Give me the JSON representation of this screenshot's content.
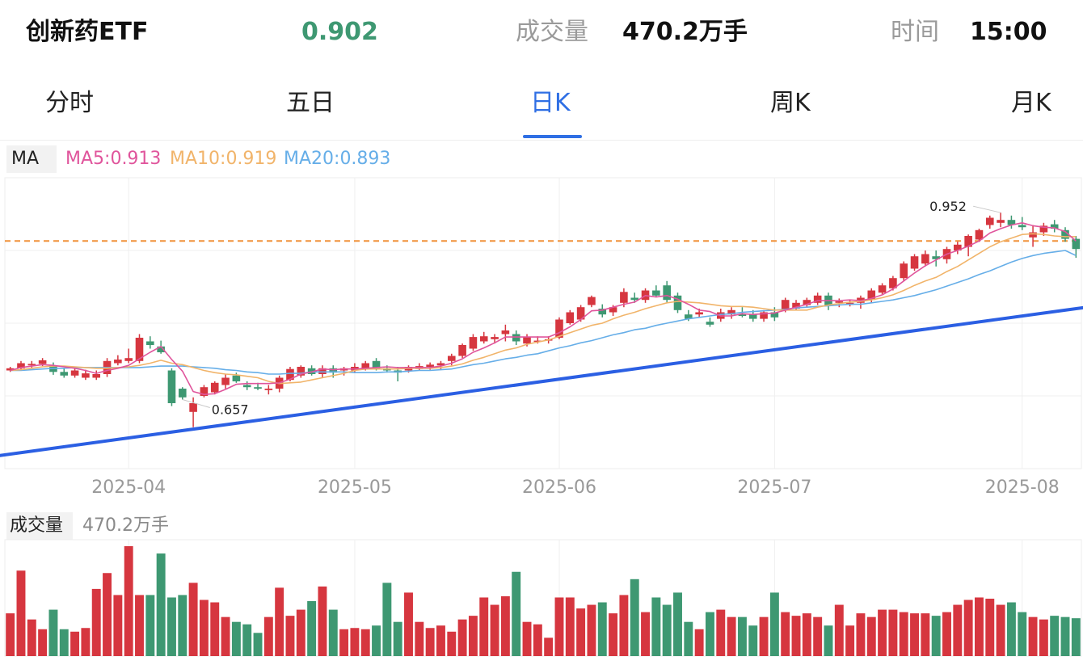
{
  "header": {
    "name": "创新药ETF",
    "price": "0.902",
    "volume_label": "成交量",
    "volume_value": "470.2万手",
    "time_label": "时间",
    "time_value": "15:00"
  },
  "tabs": [
    {
      "label": "分时",
      "active": false
    },
    {
      "label": "五日",
      "active": false
    },
    {
      "label": "日K",
      "active": true
    },
    {
      "label": "周K",
      "active": false
    },
    {
      "label": "月K",
      "active": false
    }
  ],
  "ma_legend": {
    "box": "MA",
    "ma5": "MA5:0.913",
    "ma10": "MA10:0.919",
    "ma20": "MA20:0.893"
  },
  "volume_legend": {
    "box": "成交量",
    "value": "470.2万手"
  },
  "colors": {
    "up": "#d6363f",
    "down": "#3e9872",
    "ma5": "#e0559c",
    "ma10": "#f1b46a",
    "ma20": "#66aee8",
    "trendline": "#2b5fe3",
    "ref_line": "#f0923a",
    "accent": "#2f6fe4"
  },
  "chart_data": {
    "type": "candlestick",
    "x_tick_labels": [
      "2025-04",
      "2025-05",
      "2025-06",
      "2025-07",
      "2025-08"
    ],
    "x_tick_index": [
      11,
      32,
      51,
      71,
      94
    ],
    "ylim": [
      0.6,
      1.0
    ],
    "reference_price": 0.913,
    "high_marker": {
      "label": "0.952",
      "index": 92
    },
    "low_marker": {
      "label": "0.657",
      "index": 16
    },
    "trendline": {
      "start": [
        0,
        0.62
      ],
      "end": [
        99,
        0.82
      ]
    },
    "ohlc": [
      [
        0.735,
        0.74,
        0.733,
        0.738
      ],
      [
        0.738,
        0.748,
        0.735,
        0.745
      ],
      [
        0.742,
        0.748,
        0.738,
        0.744
      ],
      [
        0.744,
        0.752,
        0.741,
        0.749
      ],
      [
        0.742,
        0.746,
        0.729,
        0.733
      ],
      [
        0.733,
        0.738,
        0.725,
        0.728
      ],
      [
        0.728,
        0.738,
        0.725,
        0.735
      ],
      [
        0.725,
        0.736,
        0.722,
        0.731
      ],
      [
        0.725,
        0.735,
        0.722,
        0.73
      ],
      [
        0.73,
        0.752,
        0.726,
        0.748
      ],
      [
        0.745,
        0.756,
        0.742,
        0.75
      ],
      [
        0.748,
        0.765,
        0.745,
        0.752
      ],
      [
        0.748,
        0.785,
        0.745,
        0.78
      ],
      [
        0.775,
        0.782,
        0.765,
        0.77
      ],
      [
        0.768,
        0.776,
        0.758,
        0.76
      ],
      [
        0.735,
        0.738,
        0.686,
        0.69
      ],
      [
        0.71,
        0.712,
        0.695,
        0.698
      ],
      [
        0.678,
        0.698,
        0.657,
        0.69
      ],
      [
        0.7,
        0.715,
        0.698,
        0.712
      ],
      [
        0.705,
        0.72,
        0.702,
        0.718
      ],
      [
        0.715,
        0.73,
        0.71,
        0.725
      ],
      [
        0.728,
        0.732,
        0.718,
        0.72
      ],
      [
        0.715,
        0.72,
        0.708,
        0.712
      ],
      [
        0.712,
        0.718,
        0.708,
        0.71
      ],
      [
        0.708,
        0.715,
        0.702,
        0.71
      ],
      [
        0.71,
        0.728,
        0.705,
        0.725
      ],
      [
        0.722,
        0.74,
        0.72,
        0.737
      ],
      [
        0.728,
        0.742,
        0.725,
        0.74
      ],
      [
        0.738,
        0.742,
        0.728,
        0.73
      ],
      [
        0.73,
        0.742,
        0.725,
        0.738
      ],
      [
        0.738,
        0.742,
        0.725,
        0.732
      ],
      [
        0.735,
        0.74,
        0.728,
        0.738
      ],
      [
        0.735,
        0.745,
        0.732,
        0.74
      ],
      [
        0.738,
        0.748,
        0.735,
        0.745
      ],
      [
        0.748,
        0.752,
        0.735,
        0.738
      ],
      [
        0.738,
        0.742,
        0.732,
        0.735
      ],
      [
        0.735,
        0.74,
        0.72,
        0.732
      ],
      [
        0.735,
        0.742,
        0.732,
        0.74
      ],
      [
        0.737,
        0.745,
        0.735,
        0.741
      ],
      [
        0.74,
        0.746,
        0.736,
        0.743
      ],
      [
        0.742,
        0.748,
        0.736,
        0.745
      ],
      [
        0.748,
        0.758,
        0.742,
        0.755
      ],
      [
        0.755,
        0.772,
        0.752,
        0.77
      ],
      [
        0.765,
        0.785,
        0.762,
        0.781
      ],
      [
        0.775,
        0.788,
        0.772,
        0.782
      ],
      [
        0.778,
        0.785,
        0.772,
        0.781
      ],
      [
        0.785,
        0.798,
        0.775,
        0.79
      ],
      [
        0.785,
        0.79,
        0.77,
        0.775
      ],
      [
        0.772,
        0.785,
        0.768,
        0.781
      ],
      [
        0.775,
        0.782,
        0.772,
        0.776
      ],
      [
        0.776,
        0.782,
        0.772,
        0.778
      ],
      [
        0.78,
        0.808,
        0.778,
        0.805
      ],
      [
        0.8,
        0.818,
        0.798,
        0.815
      ],
      [
        0.805,
        0.825,
        0.802,
        0.822
      ],
      [
        0.825,
        0.838,
        0.822,
        0.836
      ],
      [
        0.82,
        0.826,
        0.808,
        0.812
      ],
      [
        0.815,
        0.825,
        0.81,
        0.822
      ],
      [
        0.828,
        0.848,
        0.822,
        0.843
      ],
      [
        0.835,
        0.842,
        0.828,
        0.832
      ],
      [
        0.832,
        0.848,
        0.828,
        0.845
      ],
      [
        0.845,
        0.852,
        0.836,
        0.838
      ],
      [
        0.852,
        0.858,
        0.828,
        0.832
      ],
      [
        0.838,
        0.842,
        0.814,
        0.818
      ],
      [
        0.812,
        0.818,
        0.803,
        0.806
      ],
      [
        0.812,
        0.82,
        0.808,
        0.815
      ],
      [
        0.802,
        0.808,
        0.795,
        0.798
      ],
      [
        0.806,
        0.82,
        0.802,
        0.815
      ],
      [
        0.812,
        0.822,
        0.806,
        0.818
      ],
      [
        0.812,
        0.822,
        0.808,
        0.81
      ],
      [
        0.812,
        0.818,
        0.802,
        0.806
      ],
      [
        0.806,
        0.818,
        0.802,
        0.815
      ],
      [
        0.815,
        0.822,
        0.803,
        0.808
      ],
      [
        0.818,
        0.835,
        0.815,
        0.832
      ],
      [
        0.82,
        0.832,
        0.818,
        0.828
      ],
      [
        0.825,
        0.835,
        0.822,
        0.832
      ],
      [
        0.828,
        0.842,
        0.825,
        0.838
      ],
      [
        0.838,
        0.842,
        0.818,
        0.825
      ],
      [
        0.828,
        0.834,
        0.822,
        0.83
      ],
      [
        0.825,
        0.832,
        0.823,
        0.828
      ],
      [
        0.828,
        0.838,
        0.82,
        0.835
      ],
      [
        0.832,
        0.848,
        0.828,
        0.845
      ],
      [
        0.842,
        0.855,
        0.84,
        0.852
      ],
      [
        0.848,
        0.865,
        0.845,
        0.862
      ],
      [
        0.862,
        0.885,
        0.858,
        0.882
      ],
      [
        0.875,
        0.895,
        0.872,
        0.892
      ],
      [
        0.882,
        0.9,
        0.878,
        0.895
      ],
      [
        0.892,
        0.9,
        0.878,
        0.888
      ],
      [
        0.888,
        0.905,
        0.882,
        0.902
      ],
      [
        0.9,
        0.912,
        0.895,
        0.908
      ],
      [
        0.905,
        0.922,
        0.892,
        0.92
      ],
      [
        0.915,
        0.93,
        0.912,
        0.928
      ],
      [
        0.935,
        0.948,
        0.93,
        0.945
      ],
      [
        0.938,
        0.952,
        0.932,
        0.942
      ],
      [
        0.942,
        0.948,
        0.93,
        0.935
      ],
      [
        0.935,
        0.946,
        0.928,
        0.932
      ],
      [
        0.918,
        0.935,
        0.905,
        0.925
      ],
      [
        0.925,
        0.938,
        0.92,
        0.934
      ],
      [
        0.936,
        0.942,
        0.925,
        0.93
      ],
      [
        0.928,
        0.932,
        0.912,
        0.916
      ],
      [
        0.916,
        0.92,
        0.89,
        0.902
      ]
    ],
    "ma5": [
      0.735,
      0.739,
      0.741,
      0.743,
      0.742,
      0.74,
      0.738,
      0.735,
      0.731,
      0.735,
      0.738,
      0.742,
      0.751,
      0.76,
      0.768,
      0.75,
      0.734,
      0.706,
      0.702,
      0.703,
      0.709,
      0.716,
      0.717,
      0.717,
      0.717,
      0.718,
      0.723,
      0.73,
      0.733,
      0.737,
      0.736,
      0.737,
      0.737,
      0.738,
      0.739,
      0.74,
      0.739,
      0.739,
      0.739,
      0.739,
      0.741,
      0.745,
      0.751,
      0.76,
      0.766,
      0.773,
      0.781,
      0.781,
      0.781,
      0.781,
      0.781,
      0.787,
      0.795,
      0.805,
      0.817,
      0.818,
      0.822,
      0.826,
      0.829,
      0.838,
      0.836,
      0.838,
      0.833,
      0.826,
      0.818,
      0.816,
      0.81,
      0.81,
      0.813,
      0.812,
      0.813,
      0.814,
      0.818,
      0.822,
      0.826,
      0.831,
      0.831,
      0.831,
      0.832,
      0.831,
      0.834,
      0.839,
      0.847,
      0.858,
      0.869,
      0.879,
      0.887,
      0.895,
      0.9,
      0.906,
      0.913,
      0.924,
      0.93,
      0.935,
      0.938,
      0.934,
      0.932,
      0.931,
      0.926,
      0.913
    ],
    "ma10": [
      0.735,
      0.736,
      0.738,
      0.74,
      0.741,
      0.741,
      0.74,
      0.739,
      0.738,
      0.738,
      0.739,
      0.74,
      0.742,
      0.745,
      0.749,
      0.745,
      0.743,
      0.739,
      0.735,
      0.732,
      0.73,
      0.729,
      0.727,
      0.725,
      0.72,
      0.717,
      0.718,
      0.719,
      0.722,
      0.725,
      0.728,
      0.731,
      0.735,
      0.737,
      0.737,
      0.737,
      0.737,
      0.738,
      0.738,
      0.738,
      0.739,
      0.741,
      0.744,
      0.749,
      0.753,
      0.758,
      0.763,
      0.766,
      0.771,
      0.774,
      0.777,
      0.782,
      0.787,
      0.792,
      0.797,
      0.8,
      0.806,
      0.811,
      0.815,
      0.82,
      0.824,
      0.828,
      0.83,
      0.829,
      0.828,
      0.826,
      0.824,
      0.823,
      0.823,
      0.822,
      0.82,
      0.818,
      0.818,
      0.818,
      0.818,
      0.822,
      0.825,
      0.827,
      0.829,
      0.83,
      0.832,
      0.835,
      0.839,
      0.845,
      0.852,
      0.858,
      0.863,
      0.871,
      0.878,
      0.887,
      0.896,
      0.905,
      0.912,
      0.917,
      0.922,
      0.923,
      0.922,
      0.92,
      0.919,
      0.919
    ],
    "ma20": [
      0.735,
      0.735,
      0.736,
      0.737,
      0.738,
      0.738,
      0.739,
      0.739,
      0.739,
      0.739,
      0.739,
      0.739,
      0.739,
      0.74,
      0.741,
      0.741,
      0.741,
      0.74,
      0.739,
      0.738,
      0.736,
      0.735,
      0.733,
      0.732,
      0.73,
      0.73,
      0.731,
      0.731,
      0.733,
      0.733,
      0.733,
      0.733,
      0.732,
      0.732,
      0.732,
      0.733,
      0.733,
      0.734,
      0.735,
      0.735,
      0.736,
      0.737,
      0.74,
      0.743,
      0.745,
      0.748,
      0.751,
      0.753,
      0.756,
      0.758,
      0.762,
      0.766,
      0.769,
      0.773,
      0.776,
      0.78,
      0.784,
      0.787,
      0.791,
      0.793,
      0.797,
      0.8,
      0.803,
      0.806,
      0.808,
      0.81,
      0.812,
      0.813,
      0.815,
      0.816,
      0.817,
      0.818,
      0.819,
      0.821,
      0.822,
      0.823,
      0.824,
      0.825,
      0.826,
      0.826,
      0.828,
      0.83,
      0.832,
      0.835,
      0.838,
      0.842,
      0.846,
      0.851,
      0.856,
      0.861,
      0.867,
      0.872,
      0.878,
      0.884,
      0.889,
      0.893,
      0.896,
      0.898,
      0.9,
      0.893
    ],
    "volume": [
      0.35,
      0.7,
      0.3,
      0.22,
      0.38,
      0.22,
      0.2,
      0.23,
      0.55,
      0.68,
      0.5,
      0.9,
      0.5,
      0.5,
      0.84,
      0.48,
      0.5,
      0.6,
      0.46,
      0.44,
      0.32,
      0.28,
      0.26,
      0.19,
      0.32,
      0.56,
      0.33,
      0.38,
      0.45,
      0.57,
      0.38,
      0.22,
      0.23,
      0.22,
      0.25,
      0.6,
      0.28,
      0.52,
      0.28,
      0.23,
      0.25,
      0.2,
      0.3,
      0.33,
      0.48,
      0.42,
      0.49,
      0.69,
      0.28,
      0.26,
      0.15,
      0.48,
      0.48,
      0.39,
      0.42,
      0.44,
      0.35,
      0.5,
      0.63,
      0.36,
      0.48,
      0.42,
      0.52,
      0.28,
      0.22,
      0.36,
      0.38,
      0.32,
      0.32,
      0.25,
      0.32,
      0.52,
      0.36,
      0.33,
      0.35,
      0.32,
      0.25,
      0.42,
      0.25,
      0.35,
      0.32,
      0.38,
      0.38,
      0.36,
      0.35,
      0.35,
      0.33,
      0.36,
      0.42,
      0.46,
      0.48,
      0.47,
      0.42,
      0.44,
      0.36,
      0.32,
      0.3,
      0.33,
      0.32,
      0.31
    ]
  }
}
